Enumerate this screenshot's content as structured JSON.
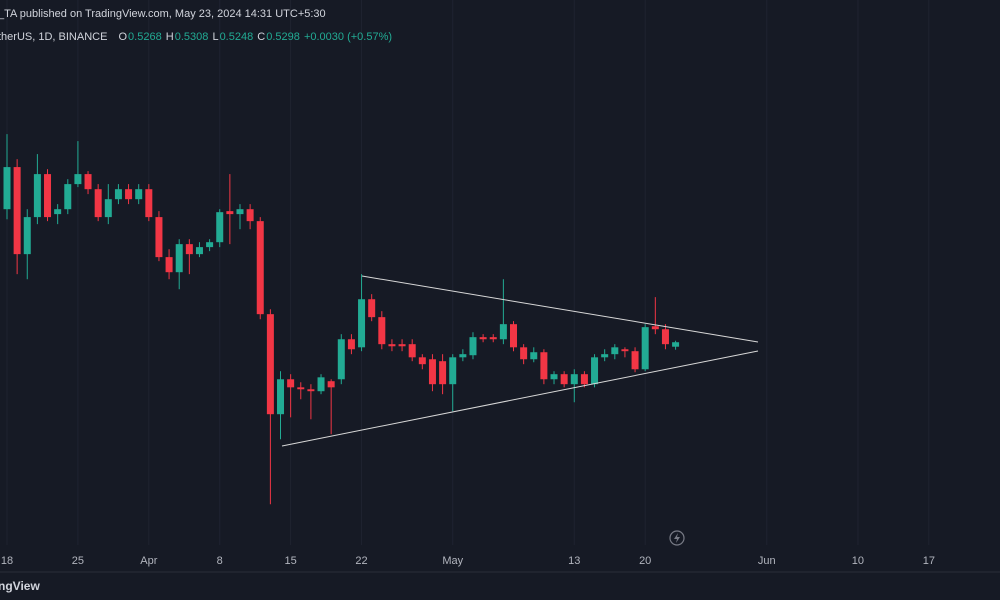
{
  "chart_data": {
    "type": "candlestick",
    "title": "_TA published on TradingView.com, May 23, 2024 14:31 UTC+5:30",
    "symbol": "therUS, 1D, BINANCE",
    "ohlc_labels": [
      "O",
      "H",
      "L",
      "C"
    ],
    "change": "+0.0030 (+0.57%)",
    "watermark": "ngView",
    "up_color": "#22ab94",
    "down_color": "#f23645",
    "grid": true,
    "ylim": [
      0.394,
      0.759
    ],
    "categories": [
      "18",
      null,
      null,
      null,
      null,
      null,
      null,
      "25",
      null,
      null,
      null,
      null,
      null,
      null,
      "Apr",
      null,
      null,
      null,
      null,
      null,
      null,
      "8",
      null,
      null,
      null,
      null,
      null,
      null,
      "15",
      null,
      null,
      null,
      null,
      null,
      null,
      "22",
      null,
      null,
      null,
      null,
      null,
      null,
      null,
      null,
      "May",
      null,
      null,
      null,
      null,
      null,
      null,
      null,
      null,
      null,
      null,
      null,
      "13",
      null,
      null,
      null,
      null,
      null,
      null,
      "20",
      null,
      null,
      null,
      null,
      null,
      null,
      null,
      null,
      null,
      null,
      null,
      "Jun",
      null,
      null,
      null,
      null,
      null,
      null,
      null,
      null,
      "10",
      null,
      null,
      null,
      null,
      null,
      null,
      "17",
      null,
      null,
      null,
      null,
      null,
      null,
      null
    ],
    "open": [
      0.6189,
      0.6471,
      0.5888,
      0.6136,
      0.6424,
      0.6156,
      0.6189,
      0.6357,
      0.6424,
      0.6323,
      0.6136,
      0.6256,
      0.6323,
      0.6256,
      0.6323,
      0.6136,
      0.5868,
      0.5767,
      0.5955,
      0.5888,
      0.5935,
      0.5968,
      0.6176,
      0.6156,
      0.6189,
      0.6109,
      0.5486,
      0.4816,
      0.505,
      0.4996,
      0.4983,
      0.497,
      0.5037,
      0.505,
      0.5318,
      0.5264,
      0.5586,
      0.5466,
      0.5285,
      0.5285,
      0.5285,
      0.5197,
      0.5184,
      0.5171,
      0.5017,
      0.5197,
      0.5211,
      0.5332,
      0.5332,
      0.5318,
      0.5419,
      0.5264,
      0.5184,
      0.5231,
      0.505,
      0.5084,
      0.5017,
      0.5084,
      0.5017,
      0.5197,
      0.5218,
      0.5251,
      0.5238,
      0.5117,
      0.5405,
      0.5385,
      0.5268,
      null,
      null,
      null,
      null,
      null,
      null,
      null,
      null,
      null,
      null,
      null,
      null,
      null,
      null,
      null,
      null,
      null,
      null,
      null,
      null,
      null,
      null,
      null,
      null,
      null,
      null,
      null,
      null,
      null,
      null,
      null,
      null
    ],
    "high": [
      0.6692,
      0.6524,
      0.6189,
      0.6558,
      0.6457,
      0.6223,
      0.639,
      0.6645,
      0.6444,
      0.6357,
      0.6357,
      0.6357,
      0.6357,
      0.6357,
      0.6357,
      0.6176,
      0.5921,
      0.5988,
      0.5988,
      0.5968,
      0.5988,
      0.6189,
      0.6424,
      0.6223,
      0.6223,
      0.6136,
      0.5519,
      0.5104,
      0.5084,
      0.503,
      0.5017,
      0.5084,
      0.505,
      0.5352,
      0.5352,
      0.5754,
      0.562,
      0.5506,
      0.5318,
      0.5318,
      0.5318,
      0.5218,
      0.5218,
      0.5218,
      0.5218,
      0.5251,
      0.5365,
      0.5352,
      0.5352,
      0.572,
      0.5439,
      0.5285,
      0.5264,
      0.5251,
      0.5104,
      0.5104,
      0.5117,
      0.5104,
      0.5218,
      0.5251,
      0.5285,
      0.5264,
      0.5264,
      0.5419,
      0.56,
      0.5419,
      0.5308,
      null,
      null,
      null,
      null,
      null,
      null,
      null,
      null,
      null,
      null,
      null,
      null,
      null,
      null,
      null,
      null,
      null,
      null,
      null,
      null,
      null,
      null,
      null,
      null,
      null,
      null,
      null,
      null,
      null,
      null,
      null,
      null
    ],
    "low": [
      0.6122,
      0.5754,
      0.572,
      0.6089,
      0.6109,
      0.6089,
      0.6156,
      0.6337,
      0.629,
      0.6109,
      0.6089,
      0.6223,
      0.6223,
      0.6223,
      0.6109,
      0.5841,
      0.572,
      0.5653,
      0.5754,
      0.5868,
      0.5908,
      0.5935,
      0.5955,
      0.6055,
      0.6055,
      0.5452,
      0.4213,
      0.4648,
      0.4795,
      0.4916,
      0.4782,
      0.495,
      0.4682,
      0.5017,
      0.5218,
      0.5238,
      0.5439,
      0.5251,
      0.5238,
      0.5238,
      0.5171,
      0.5117,
      0.497,
      0.495,
      0.4836,
      0.5171,
      0.5184,
      0.5298,
      0.5298,
      0.5285,
      0.5238,
      0.5151,
      0.5164,
      0.5017,
      0.5017,
      0.4996,
      0.4896,
      0.4996,
      0.4996,
      0.5171,
      0.5184,
      0.5197,
      0.5097,
      0.5104,
      0.5352,
      0.5251,
      0.5248,
      null,
      null,
      null,
      null,
      null,
      null,
      null,
      null,
      null,
      null,
      null,
      null,
      null,
      null,
      null,
      null,
      null,
      null,
      null,
      null,
      null,
      null,
      null,
      null,
      null,
      null,
      null,
      null,
      null,
      null,
      null,
      null
    ],
    "close": [
      0.6471,
      0.5888,
      0.6136,
      0.6424,
      0.6136,
      0.6189,
      0.6357,
      0.6424,
      0.6323,
      0.6136,
      0.6256,
      0.6323,
      0.6256,
      0.6323,
      0.6136,
      0.5868,
      0.5767,
      0.5955,
      0.5888,
      0.5935,
      0.5968,
      0.6169,
      0.6156,
      0.6189,
      0.6109,
      0.5486,
      0.4816,
      0.505,
      0.4996,
      0.4983,
      0.497,
      0.5063,
      0.4996,
      0.5318,
      0.5251,
      0.5586,
      0.5466,
      0.5285,
      0.5271,
      0.5271,
      0.5197,
      0.5151,
      0.5017,
      0.5017,
      0.5197,
      0.5218,
      0.5332,
      0.5318,
      0.5318,
      0.5419,
      0.5264,
      0.5184,
      0.5231,
      0.505,
      0.5084,
      0.5017,
      0.5084,
      0.5017,
      0.5197,
      0.5218,
      0.5264,
      0.5238,
      0.5117,
      0.5399,
      0.5385,
      0.5285,
      0.5298,
      null,
      null,
      null,
      null,
      null,
      null,
      null,
      null,
      null,
      null,
      null,
      null,
      null,
      null,
      null,
      null,
      null,
      null,
      null,
      null,
      null,
      null,
      null,
      null,
      null,
      null,
      null,
      null,
      null,
      null,
      null,
      null
    ]
  }
}
